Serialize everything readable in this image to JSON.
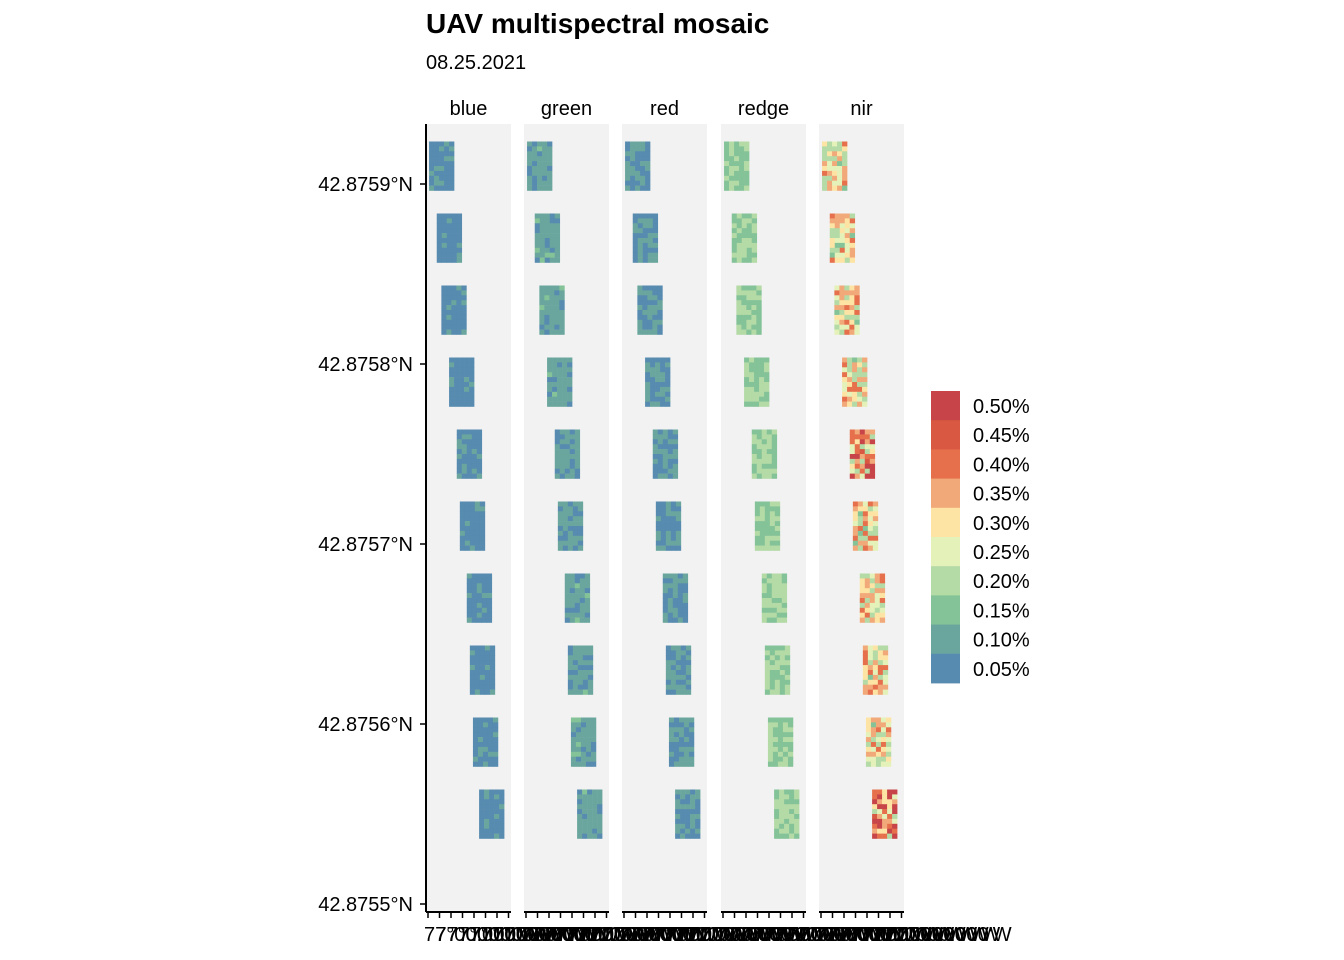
{
  "chart_data": {
    "type": "heatmap",
    "title": "UAV multispectral mosaic",
    "subtitle": "08.25.2021",
    "xlabel": "",
    "ylabel": "",
    "panels": [
      "blue",
      "green",
      "red",
      "redge",
      "nir"
    ],
    "y_ticks": [
      "42.8759°N",
      "42.8758°N",
      "42.8757°N",
      "42.8756°N",
      "42.8755°N"
    ],
    "ylim": [
      42.8755,
      42.87593
    ],
    "x_tick_text": "77°00.000'W",
    "legend": {
      "position": "right",
      "labels": [
        "0.50%",
        "0.45%",
        "0.40%",
        "0.35%",
        "0.30%",
        "0.25%",
        "0.20%",
        "0.15%",
        "0.10%",
        "0.05%"
      ],
      "colors": [
        "#C74448",
        "#D85842",
        "#E6704C",
        "#F2A97A",
        "#FDE4A4",
        "#E4F1B9",
        "#B4DAA6",
        "#84C298",
        "#6BA69E",
        "#578BAF"
      ]
    },
    "plots_per_panel": 10,
    "plot_center_lat": [
      42.87591,
      42.87587,
      42.87583,
      42.87579,
      42.87575,
      42.87571,
      42.87567,
      42.87563,
      42.87559,
      42.87555
    ],
    "plot_center_lon_rel": [
      0.15,
      0.25,
      0.31,
      0.41,
      0.51,
      0.55,
      0.64,
      0.68,
      0.72,
      0.8
    ],
    "band_mean_reflectance_pct": {
      "blue": 0.05,
      "green": 0.09,
      "red": 0.07,
      "redge": 0.17,
      "nir": 0.27
    }
  }
}
